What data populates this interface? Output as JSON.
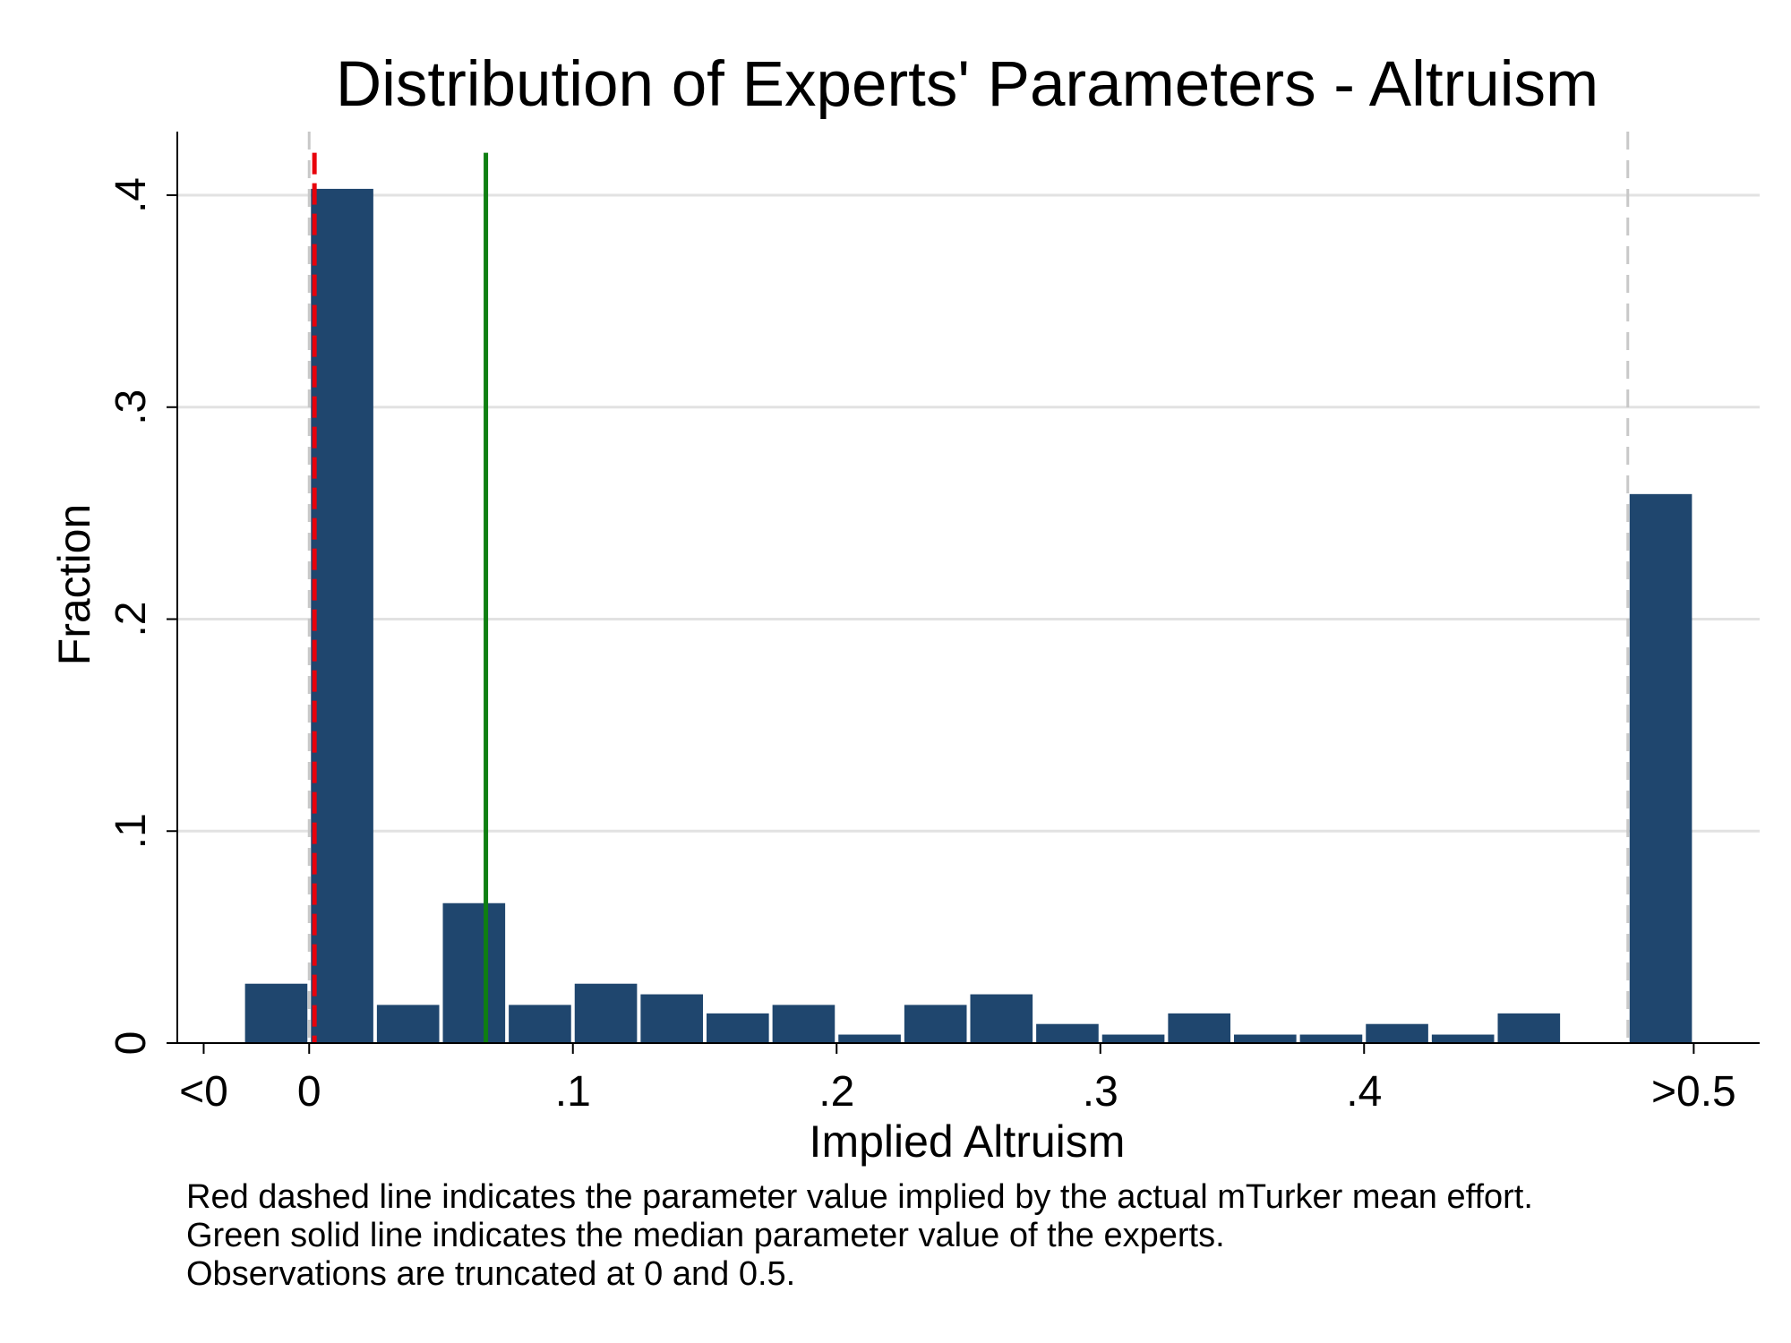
{
  "chart_data": {
    "type": "bar",
    "title": "Distribution of Experts' Parameters - Altruism",
    "xlabel": "Implied Altruism",
    "ylabel": "Fraction",
    "ylim": [
      0,
      0.43
    ],
    "xlim": [
      -0.05,
      0.55
    ],
    "grid": true,
    "bar_color": "#1f466e",
    "x_ticks": [
      {
        "value": -0.04,
        "label": "<0"
      },
      {
        "value": 0,
        "label": "0"
      },
      {
        "value": 0.1,
        "label": ".1"
      },
      {
        "value": 0.2,
        "label": ".2"
      },
      {
        "value": 0.3,
        "label": ".3"
      },
      {
        "value": 0.4,
        "label": ".4"
      },
      {
        "value": 0.525,
        "label": ">0.5"
      }
    ],
    "y_ticks": [
      {
        "value": 0,
        "label": "0"
      },
      {
        "value": 0.1,
        "label": ".1"
      },
      {
        "value": 0.2,
        "label": ".2"
      },
      {
        "value": 0.3,
        "label": ".3"
      },
      {
        "value": 0.4,
        "label": ".4"
      }
    ],
    "bars": [
      {
        "x0": -0.025,
        "x1": 0.0,
        "value": 0.028
      },
      {
        "x0": 0.0,
        "x1": 0.025,
        "value": 0.403
      },
      {
        "x0": 0.025,
        "x1": 0.05,
        "value": 0.018
      },
      {
        "x0": 0.05,
        "x1": 0.075,
        "value": 0.066
      },
      {
        "x0": 0.075,
        "x1": 0.1,
        "value": 0.018
      },
      {
        "x0": 0.1,
        "x1": 0.125,
        "value": 0.028
      },
      {
        "x0": 0.125,
        "x1": 0.15,
        "value": 0.023
      },
      {
        "x0": 0.15,
        "x1": 0.175,
        "value": 0.014
      },
      {
        "x0": 0.175,
        "x1": 0.2,
        "value": 0.018
      },
      {
        "x0": 0.2,
        "x1": 0.225,
        "value": 0.004
      },
      {
        "x0": 0.225,
        "x1": 0.25,
        "value": 0.018
      },
      {
        "x0": 0.25,
        "x1": 0.275,
        "value": 0.023
      },
      {
        "x0": 0.275,
        "x1": 0.3,
        "value": 0.009
      },
      {
        "x0": 0.3,
        "x1": 0.325,
        "value": 0.004
      },
      {
        "x0": 0.325,
        "x1": 0.35,
        "value": 0.014
      },
      {
        "x0": 0.35,
        "x1": 0.375,
        "value": 0.004
      },
      {
        "x0": 0.375,
        "x1": 0.4,
        "value": 0.004
      },
      {
        "x0": 0.4,
        "x1": 0.425,
        "value": 0.009
      },
      {
        "x0": 0.425,
        "x1": 0.45,
        "value": 0.004
      },
      {
        "x0": 0.45,
        "x1": 0.475,
        "value": 0.014
      },
      {
        "x0": 0.5,
        "x1": 0.525,
        "value": 0.259
      }
    ],
    "truncation_lines": [
      0.0,
      0.5
    ],
    "reference_lines": [
      {
        "name": "mTurker mean effort",
        "x": 0.002,
        "style": "dashed",
        "color": "#e8000b"
      },
      {
        "name": "experts median",
        "x": 0.067,
        "style": "solid",
        "color": "#0f7f12"
      }
    ],
    "notes": [
      "Red dashed line indicates the parameter value implied by the actual mTurker mean effort.",
      "Green solid line indicates the median parameter value of the experts.",
      "Observations are truncated at 0 and 0.5."
    ]
  }
}
